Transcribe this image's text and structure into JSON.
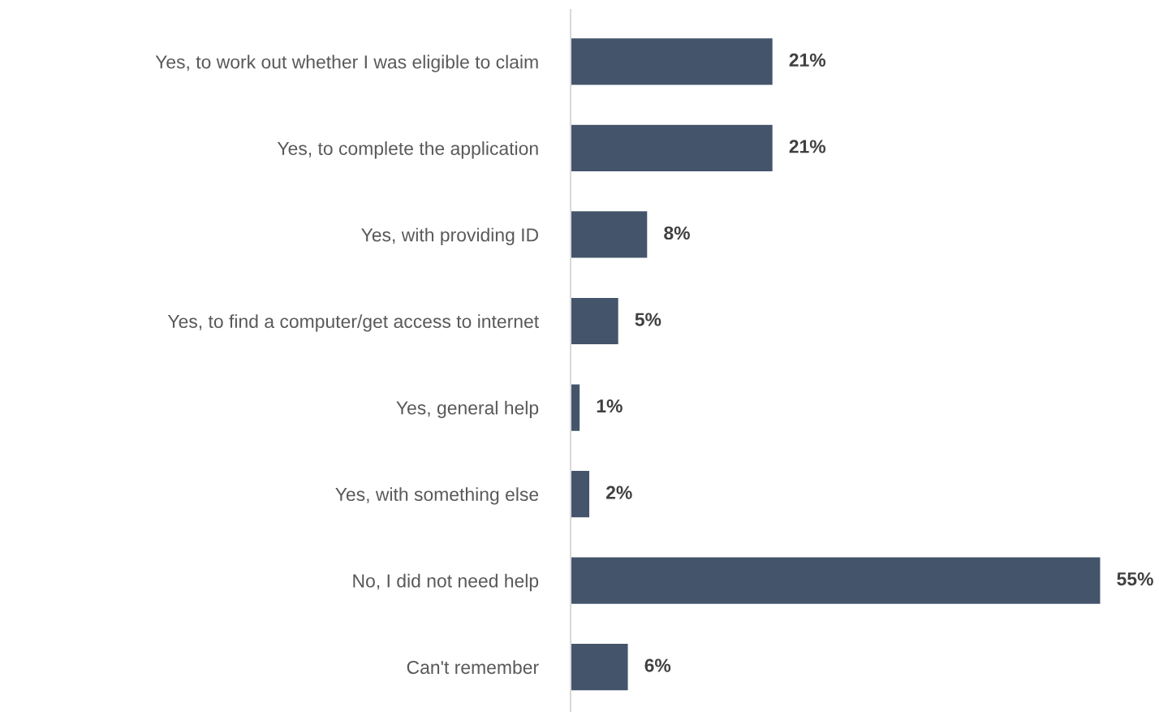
{
  "chart_data": {
    "type": "bar",
    "orientation": "horizontal",
    "categories": [
      "Yes, to work out whether I was eligible to claim",
      "Yes, to complete the application",
      "Yes, with providing ID",
      "Yes, to find a computer/get access to internet",
      "Yes, general help",
      "Yes, with something else",
      "No, I did not need help",
      "Can't remember"
    ],
    "values": [
      21,
      21,
      8,
      5,
      1,
      2,
      55,
      6
    ],
    "value_labels": [
      "21%",
      "21%",
      "8%",
      "5%",
      "1%",
      "2%",
      "55%",
      "6%"
    ],
    "color": "#44546a",
    "tick_labels": "y",
    "grid": false,
    "legend": false
  }
}
